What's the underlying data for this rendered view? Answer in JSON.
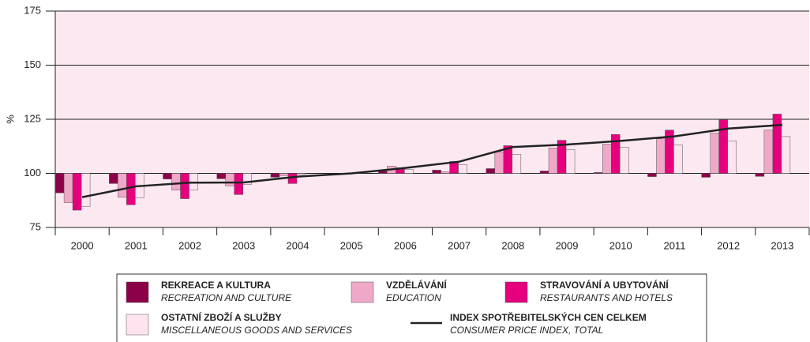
{
  "chart_data": {
    "type": "bar",
    "ylabel": "%",
    "categories": [
      "2000",
      "2001",
      "2002",
      "2003",
      "2004",
      "2005",
      "2006",
      "2007",
      "2008",
      "2009",
      "2010",
      "2011",
      "2012",
      "2013"
    ],
    "baseline": 100,
    "ylim": [
      75,
      175
    ],
    "yticks": [
      75,
      100,
      125,
      150,
      175
    ],
    "grid": true,
    "series": [
      {
        "name": "REKREACE A KULTURA",
        "name_en": "RECREATION AND CULTURE",
        "color": "#8c0048",
        "values": [
          91,
          95.3,
          97.4,
          97.5,
          98.2,
          100,
          101,
          101.5,
          102.2,
          101.1,
          100.4,
          98.5,
          98.2,
          98.6
        ]
      },
      {
        "name": "VZDĚLÁVÁNÍ",
        "name_en": "EDUCATION",
        "color": "#f0a8c8",
        "values": [
          86.5,
          89,
          92.3,
          94.2,
          99,
          100,
          103.3,
          100.7,
          110,
          111.7,
          113.5,
          116,
          118.6,
          120
        ]
      },
      {
        "name": "STRAVOVÁNÍ A UBYTOVÁNÍ",
        "name_en": "RESTAURANTS AND HOTELS",
        "color": "#e5007d",
        "values": [
          83,
          85.5,
          88.3,
          90.2,
          95.3,
          100,
          102.6,
          105.5,
          112.8,
          115.3,
          118,
          120,
          124.8,
          127.4
        ]
      },
      {
        "name": "OSTATNÍ ZBOŽÍ A SLUŽBY",
        "name_en": "MISCELLANEOUS GOODS AND SERVICES",
        "color": "#fde4ee",
        "values": [
          84.7,
          88.7,
          92.3,
          94.9,
          99.6,
          100,
          101.8,
          104,
          108.8,
          111,
          112,
          113.1,
          115,
          117
        ]
      },
      {
        "name": "INDEX SPOTŘEBITELSKÝCH CEN CELKEM",
        "name_en": "CONSUMER PRICE INDEX, TOTAL",
        "color": "#222222",
        "type": "line",
        "values": [
          89,
          94,
          95.7,
          95.8,
          98.5,
          100,
          102.5,
          105.4,
          112.2,
          113.3,
          115,
          117.1,
          120.7,
          122.4
        ]
      }
    ]
  }
}
